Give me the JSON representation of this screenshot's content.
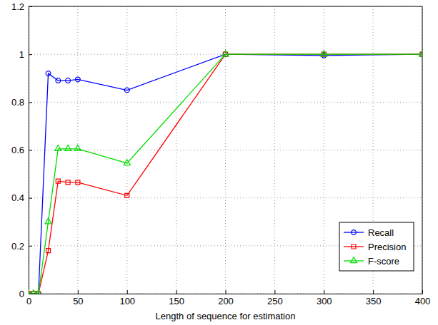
{
  "chart_data": {
    "type": "line",
    "x_label": "Length of sequence for estimation",
    "x": [
      0,
      5,
      10,
      20,
      30,
      40,
      50,
      100,
      200,
      300,
      400
    ],
    "series": [
      {
        "name": "Recall",
        "color": "#0000ff",
        "marker": "circle",
        "line_style": "solid",
        "values": [
          0,
          0,
          0,
          0.92,
          0.89,
          0.89,
          0.895,
          0.85,
          1.0,
          0.995,
          1.0
        ]
      },
      {
        "name": "Precision",
        "color": "#ff0000",
        "marker": "square",
        "line_style": "solid",
        "values": [
          0,
          0,
          0,
          0.18,
          0.47,
          0.465,
          0.465,
          0.41,
          1.0,
          1.0,
          1.0
        ]
      },
      {
        "name": "F-score",
        "color": "#00dd00",
        "marker": "triangle",
        "line_style": "solid",
        "values": [
          0,
          0,
          0,
          0.3,
          0.605,
          0.605,
          0.605,
          0.545,
          1.0,
          1.0,
          1.0
        ]
      }
    ],
    "xlim": [
      0,
      400
    ],
    "xticks": [
      0,
      50,
      100,
      150,
      200,
      250,
      300,
      350,
      400
    ],
    "ylim": [
      0,
      1.2
    ],
    "yticks": [
      0,
      0.2,
      0.4,
      0.6,
      0.8,
      1,
      1.2
    ],
    "grid": true,
    "legend": "lower right"
  }
}
